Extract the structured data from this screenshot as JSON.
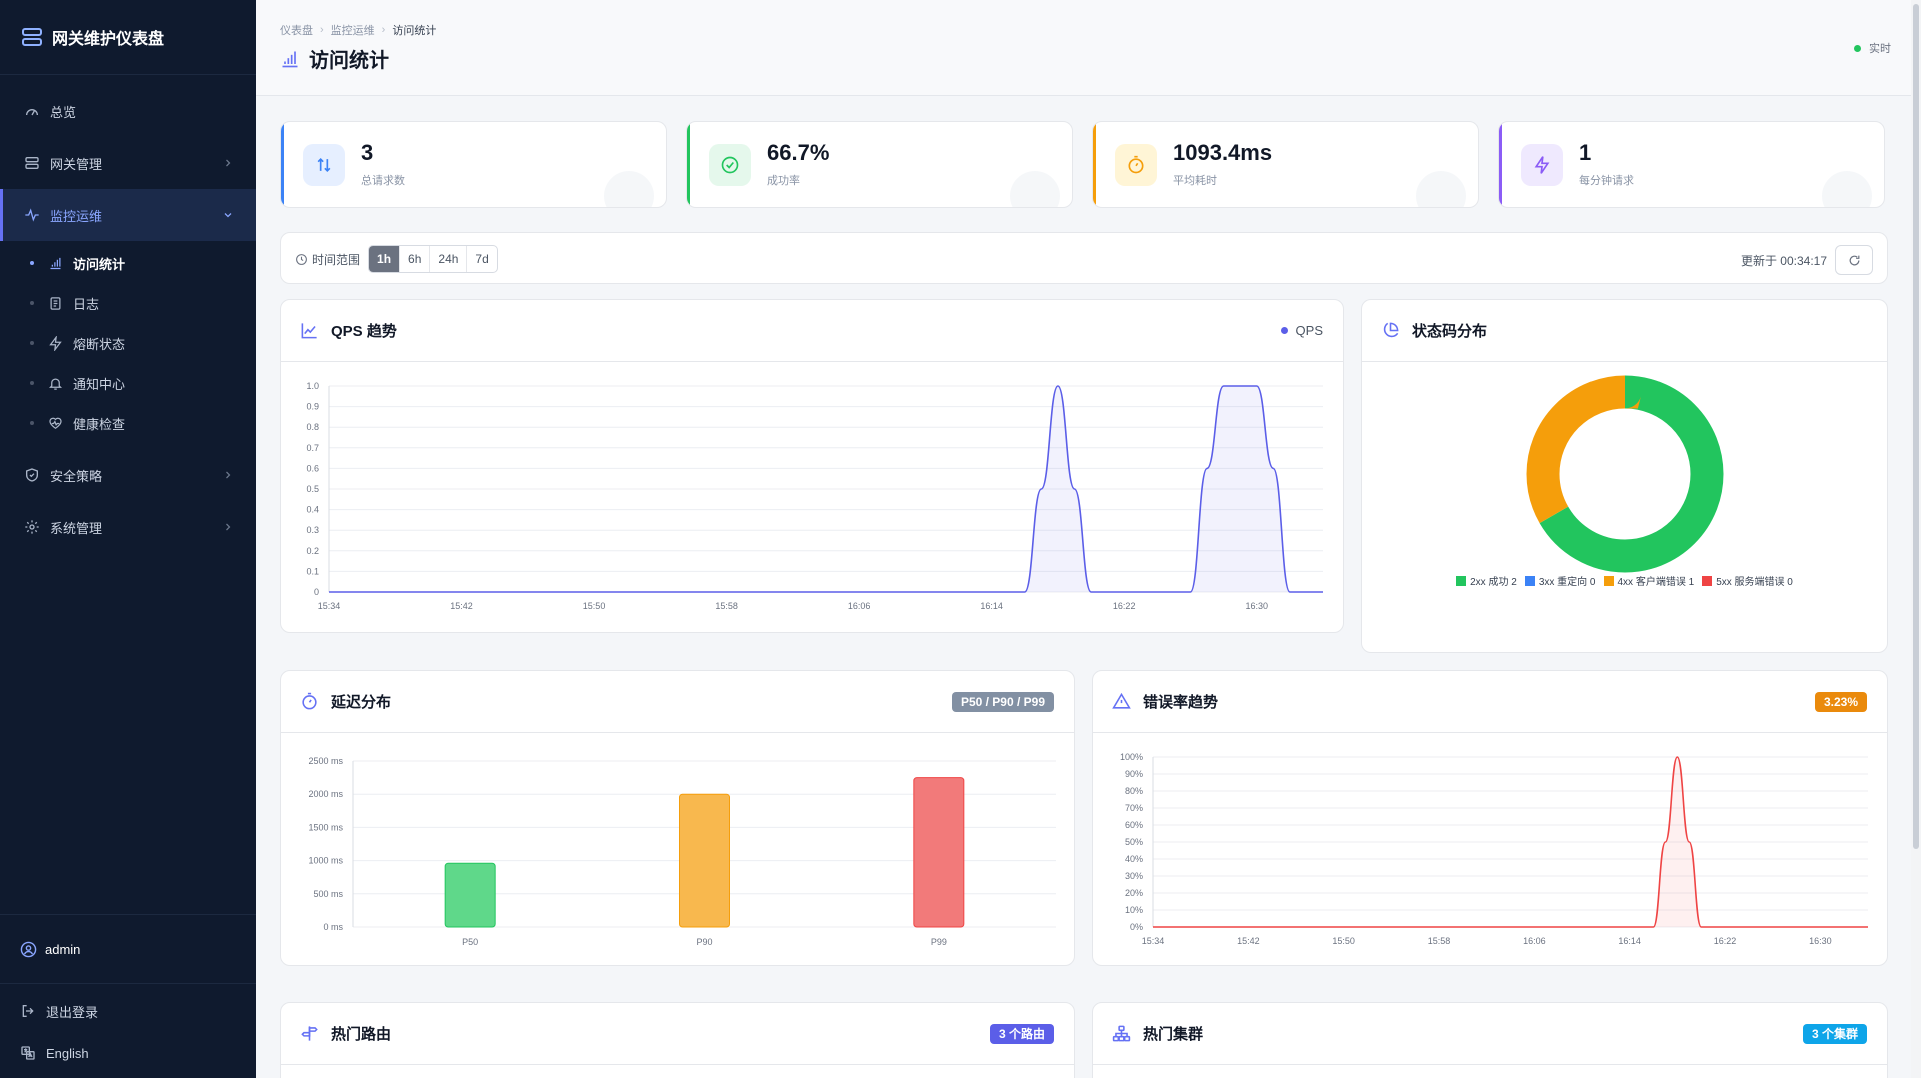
{
  "app": {
    "title": "网关维护仪表盘"
  },
  "sidebar": {
    "items": [
      {
        "label": "总览"
      },
      {
        "label": "网关管理"
      },
      {
        "label": "监控运维"
      },
      {
        "label": "安全策略"
      },
      {
        "label": "系统管理"
      }
    ],
    "sub_items": [
      {
        "label": "访问统计"
      },
      {
        "label": "日志"
      },
      {
        "label": "熔断状态"
      },
      {
        "label": "通知中心"
      },
      {
        "label": "健康检查"
      }
    ],
    "user": "admin",
    "logout": "退出登录",
    "language": "English"
  },
  "header": {
    "breadcrumb": [
      "仪表盘",
      "监控运维",
      "访问统计"
    ],
    "title": "访问统计",
    "status": "实时"
  },
  "stats": [
    {
      "value": "3",
      "label": "总请求数",
      "color": "#3b82f6"
    },
    {
      "value": "66.7%",
      "label": "成功率",
      "color": "#22c55e"
    },
    {
      "value": "1093.4ms",
      "label": "平均耗时",
      "color": "#f59e0b"
    },
    {
      "value": "1",
      "label": "每分钟请求",
      "color": "#8b5cf6"
    }
  ],
  "toolbar": {
    "range_label": "时间范围",
    "ranges": [
      "1h",
      "6h",
      "24h",
      "7d"
    ],
    "selected_range": "1h",
    "updated": "更新于 00:34:17"
  },
  "panels": {
    "qps": {
      "title": "QPS 趋势",
      "legend": "QPS"
    },
    "status": {
      "title": "状态码分布"
    },
    "latency": {
      "title": "延迟分布",
      "badge": "P50 / P90 / P99"
    },
    "error": {
      "title": "错误率趋势",
      "badge": "3.23%"
    },
    "routes": {
      "title": "热门路由",
      "badge": "3 个路由"
    },
    "clusters": {
      "title": "热门集群",
      "badge": "3 个集群"
    }
  },
  "chart_data": [
    {
      "type": "area",
      "legend": "QPS",
      "x_ticks": [
        "15:34",
        "15:42",
        "15:50",
        "15:58",
        "16:06",
        "16:14",
        "16:22",
        "16:30"
      ],
      "y_ticks": [
        "0",
        "0.1",
        "0.2",
        "0.3",
        "0.4",
        "0.5",
        "0.6",
        "0.7",
        "0.8",
        "0.9",
        "1.0"
      ],
      "ylim": [
        0,
        1
      ],
      "xlim_minutes": [
        0,
        60
      ],
      "x_minutes": [
        0,
        42,
        43,
        44,
        45,
        46,
        52,
        53,
        54,
        56,
        57,
        58,
        60
      ],
      "values": [
        0,
        0,
        0.5,
        1,
        0.5,
        0,
        0,
        0.6,
        1,
        1,
        0.6,
        0,
        0
      ],
      "color": "#5b5ee8"
    },
    {
      "type": "pie",
      "donut": true,
      "labels": [
        "2xx 成功 2",
        "3xx 重定向 0",
        "4xx 客户端错误 1",
        "5xx 服务端错误 0"
      ],
      "values": [
        2,
        0,
        1,
        0
      ],
      "colors": [
        "#22c55e",
        "#3b82f6",
        "#f59e0b",
        "#ef4444"
      ]
    },
    {
      "type": "bar",
      "categories": [
        "P50",
        "P90",
        "P99"
      ],
      "values": [
        960,
        2000,
        2250
      ],
      "y_ticks": [
        "0 ms",
        "500 ms",
        "1000 ms",
        "1500 ms",
        "2000 ms",
        "2500 ms"
      ],
      "ylim": [
        0,
        2500
      ],
      "colors": [
        "#5fd88a",
        "#f8b84e",
        "#f27a7a"
      ],
      "borders": [
        "#22c55e",
        "#f59e0b",
        "#ef4444"
      ]
    },
    {
      "type": "area",
      "x_ticks": [
        "15:34",
        "15:42",
        "15:50",
        "15:58",
        "16:06",
        "16:14",
        "16:22",
        "16:30"
      ],
      "y_ticks": [
        "0%",
        "10%",
        "20%",
        "30%",
        "40%",
        "50%",
        "60%",
        "70%",
        "80%",
        "90%",
        "100%"
      ],
      "ylim": [
        0,
        100
      ],
      "xlim_minutes": [
        0,
        60
      ],
      "x_minutes": [
        0,
        42,
        43,
        44,
        45,
        46,
        60
      ],
      "values": [
        0,
        0,
        50,
        100,
        50,
        0,
        0
      ],
      "color": "#ef4444"
    }
  ]
}
